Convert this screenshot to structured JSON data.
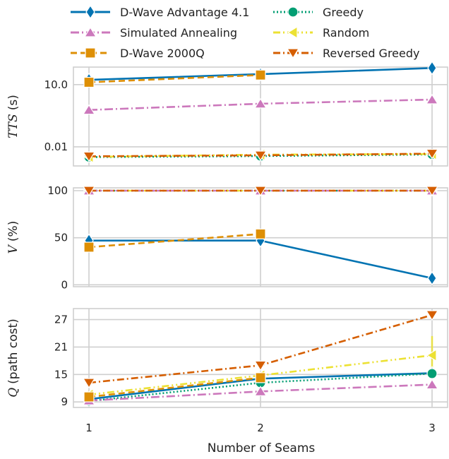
{
  "chart_data": {
    "type": "line",
    "x": [
      1,
      2,
      3
    ],
    "xlabel": "Number of Seams",
    "legend": {
      "placement": "top",
      "entries": [
        {
          "key": "dwave_adv",
          "name": "D-Wave Advantage 4.1"
        },
        {
          "key": "greedy",
          "name": "Greedy"
        },
        {
          "key": "sa",
          "name": "Simulated Annealing"
        },
        {
          "key": "random",
          "name": "Random"
        },
        {
          "key": "dwave_2000q",
          "name": "D-Wave 2000Q"
        },
        {
          "key": "rev_greedy",
          "name": "Reversed Greedy"
        }
      ]
    },
    "styles": {
      "dwave_adv": {
        "color": "#0173b2",
        "dash": "none",
        "marker": "diamond",
        "width": 2.6
      },
      "greedy": {
        "color": "#029e73",
        "dash": "2,3",
        "marker": "circle",
        "width": 2.6
      },
      "sa": {
        "color": "#cc78bc",
        "dash": "12,4,2,4",
        "marker": "triangle-up",
        "width": 2.6
      },
      "random": {
        "color": "#ece133",
        "dash": "10,4,2,4,2,4",
        "marker": "triangle-left",
        "width": 2.6
      },
      "dwave_2000q": {
        "color": "#de8f05",
        "dash": "9,5",
        "marker": "square",
        "width": 2.6
      },
      "rev_greedy": {
        "color": "#d55e00",
        "dash": "10,4,2,4",
        "marker": "triangle-down",
        "width": 2.6
      }
    },
    "panels": [
      {
        "id": "tts",
        "ylabel_math": "TTS",
        "ylabel_unit": "(s)",
        "yscale": "log",
        "ylim": [
          0.0012,
          70
        ],
        "yticks": [
          0.01,
          10.0
        ],
        "yticklabels": [
          "0.01",
          "10.0"
        ],
        "series": [
          {
            "key": "dwave_adv",
            "values": [
              17,
              32,
              63
            ]
          },
          {
            "key": "sa",
            "values": [
              0.6,
              1.2,
              1.9
            ]
          },
          {
            "key": "dwave_2000q",
            "values": [
              13,
              29,
              null
            ]
          },
          {
            "key": "greedy",
            "values": [
              0.0032,
              0.0036,
              0.0043
            ]
          },
          {
            "key": "random",
            "values": [
              0.0033,
              0.0042,
              0.0045
            ]
          },
          {
            "key": "rev_greedy",
            "values": [
              0.0035,
              0.0039,
              0.0047
            ]
          }
        ]
      },
      {
        "id": "validity",
        "ylabel_math": "V",
        "ylabel_unit": "(%)",
        "yscale": "linear",
        "ylim": [
          -2,
          103
        ],
        "yticks": [
          0,
          50,
          100
        ],
        "yticklabels": [
          "0",
          "50",
          "100"
        ],
        "series": [
          {
            "key": "greedy",
            "values": [
              100,
              100,
              100
            ]
          },
          {
            "key": "random",
            "values": [
              100,
              100,
              100
            ]
          },
          {
            "key": "sa",
            "values": [
              100,
              100,
              100
            ]
          },
          {
            "key": "rev_greedy",
            "values": [
              100,
              100,
              100
            ]
          },
          {
            "key": "dwave_adv",
            "values": [
              47,
              47,
              7
            ]
          },
          {
            "key": "dwave_2000q",
            "values": [
              40,
              54,
              null
            ]
          }
        ]
      },
      {
        "id": "quality",
        "ylabel_math": "Q",
        "ylabel_unit": "(path cost)",
        "yscale": "linear",
        "ylim": [
          7.8,
          29.4
        ],
        "yticks": [
          9,
          15,
          21,
          27
        ],
        "yticklabels": [
          "9",
          "15",
          "21",
          "27"
        ],
        "series": [
          {
            "key": "rev_greedy",
            "values": [
              13.2,
              17.0,
              28.0
            ],
            "error": [
              0,
              0,
              0
            ]
          },
          {
            "key": "random",
            "values": [
              10.6,
              14.8,
              19.2
            ],
            "error": [
              0.8,
              0.6,
              4.2
            ]
          },
          {
            "key": "dwave_adv",
            "values": [
              9.6,
              14.1,
              15.3
            ],
            "error": [
              0.3,
              0.3,
              0
            ]
          },
          {
            "key": "greedy",
            "values": [
              9.2,
              13.2,
              15.2
            ],
            "error": [
              0,
              0,
              0
            ]
          },
          {
            "key": "sa",
            "values": [
              9.3,
              11.3,
              12.8
            ],
            "error": [
              0,
              0,
              0
            ]
          },
          {
            "key": "dwave_2000q",
            "values": [
              10.1,
              14.3,
              null
            ],
            "error": [
              0.4,
              0.3,
              0
            ]
          }
        ]
      }
    ]
  }
}
